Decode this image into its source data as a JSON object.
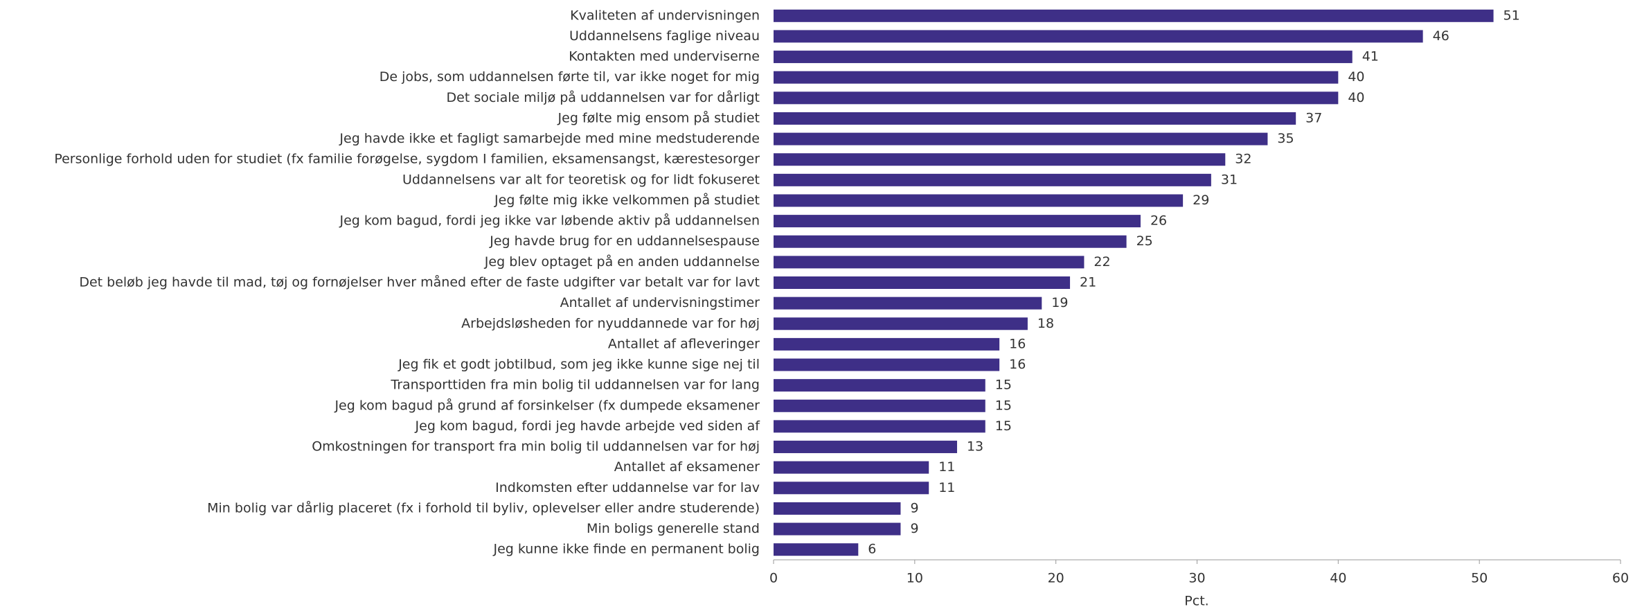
{
  "chart_data": {
    "type": "bar",
    "orientation": "horizontal",
    "categories": [
      "Kvaliteten af undervisningen",
      "Uddannelsens faglige niveau",
      "Kontakten med underviserne",
      "De jobs, som uddannelsen førte til, var ikke noget for mig",
      "Det sociale miljø på uddannelsen var for dårligt",
      "Jeg følte mig ensom på studiet",
      "Jeg havde ikke et fagligt samarbejde med mine medstuderende",
      "Personlige forhold uden for studiet (fx familie forøgelse, sygdom I familien, eksamensangst, kærestesorger",
      "Uddannelsens var alt for teoretisk og for lidt fokuseret",
      "Jeg følte mig ikke velkommen på studiet",
      "Jeg kom bagud, fordi jeg ikke var løbende aktiv på uddannelsen",
      "Jeg havde brug for en uddannelsespause",
      "Jeg blev optaget på en anden uddannelse",
      "Det beløb jeg havde til mad, tøj og fornøjelser hver måned efter de faste udgifter var betalt var for lavt",
      "Antallet af undervisningstimer",
      "Arbejdsløsheden for nyuddannede var for høj",
      "Antallet af afleveringer",
      "Jeg fik et godt jobtilbud, som jeg ikke kunne sige nej til",
      "Transporttiden fra min bolig til uddannelsen var for lang",
      "Jeg kom bagud på grund af forsinkelser (fx dumpede eksamener",
      "Jeg kom bagud, fordi jeg havde arbejde ved siden af",
      "Omkostningen for transport fra min bolig til uddannelsen var for høj",
      "Antallet af eksamener",
      "Indkomsten efter uddannelse var for lav",
      "Min bolig var dårlig placeret (fx i forhold til byliv, oplevelser eller andre studerende)",
      "Min boligs generelle stand",
      "Jeg kunne ikke finde en permanent bolig"
    ],
    "values": [
      51,
      46,
      41,
      40,
      40,
      37,
      35,
      32,
      31,
      29,
      26,
      25,
      22,
      21,
      19,
      18,
      16,
      16,
      15,
      15,
      15,
      13,
      11,
      11,
      9,
      9,
      6
    ],
    "color": "#3e2f87",
    "xlabel": "Pct.",
    "xlim": [
      0,
      60
    ],
    "xticks": [
      0,
      10,
      20,
      30,
      40,
      50,
      60
    ],
    "grid": false
  }
}
